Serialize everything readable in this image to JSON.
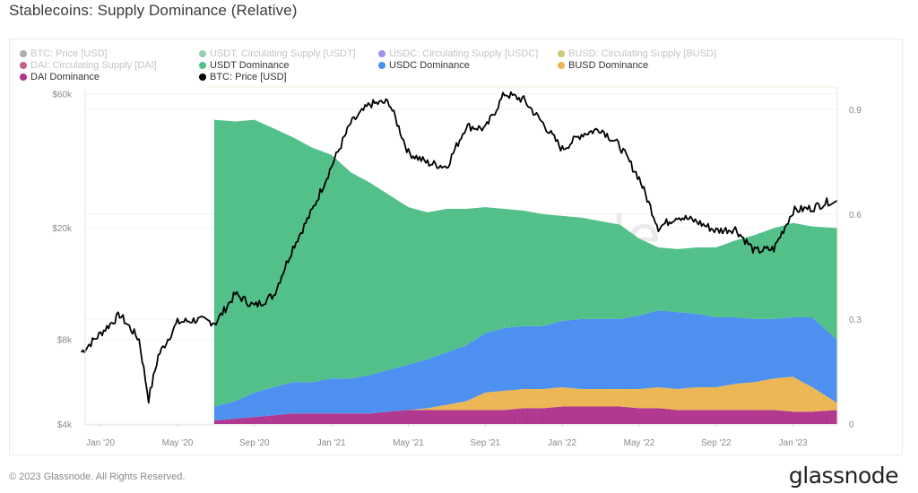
{
  "page": {
    "title": "Stablecoins: Supply Dominance (Relative)",
    "copyright": "© 2023 Glassnode. All Rights Reserved.",
    "brand": "glassnode",
    "watermark": "glassnode"
  },
  "legend": [
    {
      "label": "BTC: Price [USD]",
      "color": "#8e9398",
      "active": false
    },
    {
      "label": "USDT: Circulating Supply [USDT]",
      "color": "#6fbf95",
      "active": false
    },
    {
      "label": "USDC: Circulating Supply [USDC]",
      "color": "#7f6ee6",
      "active": false
    },
    {
      "label": "BUSD: Circulating Supply [BUSD]",
      "color": "#b9b94a",
      "active": false
    },
    {
      "label": "DAI: Circulating Supply [DAI]",
      "color": "#b22d5a",
      "active": false
    },
    {
      "label": "USDT Dominance",
      "color": "#4fbf87",
      "active": true
    },
    {
      "label": "USDC Dominance",
      "color": "#4a8ef0",
      "active": true
    },
    {
      "label": "BUSD Dominance",
      "color": "#ebb552",
      "active": true
    },
    {
      "label": "DAI Dominance",
      "color": "#b0348e",
      "active": true
    },
    {
      "label": "BTC: Price [USD]",
      "color": "#000000",
      "active": true
    }
  ],
  "chart_data": {
    "type": "area",
    "title": "Stablecoins: Supply Dominance (Relative)",
    "stacked": true,
    "x": [
      "2020-07",
      "2020-08",
      "2020-09",
      "2020-10",
      "2020-11",
      "2020-12",
      "2021-01",
      "2021-02",
      "2021-03",
      "2021-04",
      "2021-05",
      "2021-06",
      "2021-07",
      "2021-08",
      "2021-09",
      "2021-10",
      "2021-11",
      "2021-12",
      "2022-01",
      "2022-02",
      "2022-03",
      "2022-04",
      "2022-05",
      "2022-06",
      "2022-07",
      "2022-08",
      "2022-09",
      "2022-10",
      "2022-11",
      "2022-12",
      "2023-01",
      "2023-02",
      "2023-03"
    ],
    "series": [
      {
        "name": "DAI Dominance",
        "color": "#b0348e",
        "axis": "right",
        "values": [
          0.01,
          0.015,
          0.02,
          0.025,
          0.03,
          0.03,
          0.03,
          0.03,
          0.03,
          0.035,
          0.04,
          0.04,
          0.04,
          0.04,
          0.04,
          0.04,
          0.045,
          0.045,
          0.05,
          0.05,
          0.05,
          0.05,
          0.045,
          0.045,
          0.04,
          0.04,
          0.04,
          0.04,
          0.04,
          0.04,
          0.035,
          0.035,
          0.04
        ]
      },
      {
        "name": "BUSD Dominance",
        "color": "#ebb552",
        "axis": "right",
        "values": [
          0.0,
          0.0,
          0.0,
          0.0,
          0.0,
          0.0,
          0.0,
          0.0,
          0.0,
          0.0,
          0.0,
          0.005,
          0.015,
          0.025,
          0.05,
          0.055,
          0.055,
          0.055,
          0.055,
          0.05,
          0.05,
          0.05,
          0.055,
          0.06,
          0.06,
          0.065,
          0.065,
          0.075,
          0.08,
          0.09,
          0.1,
          0.07,
          0.02
        ]
      },
      {
        "name": "USDC Dominance",
        "color": "#4a8ef0",
        "axis": "right",
        "values": [
          0.04,
          0.05,
          0.07,
          0.08,
          0.09,
          0.09,
          0.1,
          0.1,
          0.11,
          0.12,
          0.13,
          0.14,
          0.15,
          0.16,
          0.17,
          0.18,
          0.18,
          0.18,
          0.19,
          0.2,
          0.2,
          0.2,
          0.21,
          0.22,
          0.22,
          0.21,
          0.2,
          0.19,
          0.18,
          0.17,
          0.17,
          0.2,
          0.18
        ]
      },
      {
        "name": "USDT Dominance",
        "color": "#4fbf87",
        "axis": "right",
        "values": [
          0.82,
          0.8,
          0.78,
          0.74,
          0.7,
          0.67,
          0.64,
          0.59,
          0.55,
          0.5,
          0.45,
          0.42,
          0.41,
          0.39,
          0.36,
          0.34,
          0.33,
          0.32,
          0.3,
          0.29,
          0.28,
          0.27,
          0.22,
          0.18,
          0.18,
          0.19,
          0.2,
          0.22,
          0.24,
          0.26,
          0.27,
          0.26,
          0.32
        ]
      }
    ],
    "line": {
      "name": "BTC: Price [USD]",
      "color": "#000000",
      "axis": "left",
      "scale": "log",
      "x": [
        "2019-12",
        "2020-01",
        "2020-02",
        "2020-03-start",
        "2020-03-crash",
        "2020-04",
        "2020-05",
        "2020-06",
        "2020-07",
        "2020-08",
        "2020-09",
        "2020-10",
        "2020-11",
        "2020-12",
        "2021-01",
        "2021-02",
        "2021-03",
        "2021-04",
        "2021-05",
        "2021-06",
        "2021-07",
        "2021-08",
        "2021-09",
        "2021-10",
        "2021-11",
        "2021-12",
        "2022-01",
        "2022-02",
        "2022-03",
        "2022-04",
        "2022-05",
        "2022-06",
        "2022-07",
        "2022-08",
        "2022-09",
        "2022-10",
        "2022-11",
        "2022-12",
        "2023-01",
        "2023-02",
        "2023-03"
      ],
      "values": [
        7200,
        8400,
        9800,
        8000,
        4900,
        7000,
        9200,
        9400,
        9200,
        11600,
        10500,
        11500,
        17000,
        23000,
        33000,
        47000,
        55000,
        56000,
        37000,
        34000,
        33000,
        46000,
        45000,
        60000,
        57000,
        47000,
        38000,
        43000,
        45000,
        39000,
        30000,
        20000,
        22000,
        21000,
        19500,
        19800,
        16500,
        16800,
        23000,
        23500,
        25000
      ]
    },
    "left_axis": {
      "scale": "log",
      "ticks": [
        "$4k",
        "$8k",
        "$20k",
        "$60k"
      ],
      "tick_values": [
        4000,
        8000,
        20000,
        60000
      ],
      "range": [
        4000,
        62000
      ]
    },
    "right_axis": {
      "scale": "linear",
      "ticks": [
        "0",
        "0.3",
        "0.6",
        "0.9"
      ],
      "tick_values": [
        0,
        0.3,
        0.6,
        0.9
      ],
      "range": [
        0,
        0.956
      ]
    },
    "x_axis": {
      "ticks": [
        "Jan '20",
        "May '20",
        "Sep '20",
        "Jan '21",
        "May '21",
        "Sep '21",
        "Jan '22",
        "May '22",
        "Sep '22",
        "Jan '23"
      ],
      "tick_dates": [
        "2020-01",
        "2020-05",
        "2020-09",
        "2021-01",
        "2021-05",
        "2021-09",
        "2022-01",
        "2022-05",
        "2022-09",
        "2023-01"
      ],
      "range": [
        "2019-12",
        "2023-03"
      ]
    },
    "grid": true,
    "legend_position": "top"
  }
}
